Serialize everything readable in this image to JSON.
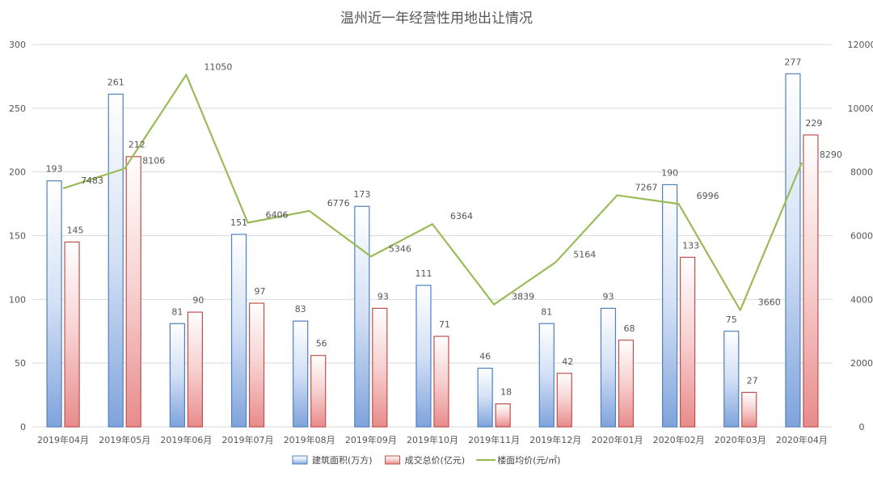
{
  "chart_data": {
    "type": "bar",
    "title": "温州近一年经营性用地出让情况",
    "categories": [
      "2019年04月",
      "2019年05月",
      "2019年06月",
      "2019年07月",
      "2019年08月",
      "2019年09月",
      "2019年10月",
      "2019年11月",
      "2019年12月",
      "2020年01月",
      "2020年02月",
      "2020年03月",
      "2020年04月"
    ],
    "series": [
      {
        "name": "建筑面积(万方)",
        "type": "bar",
        "axis": "left",
        "color": "#4f81bd",
        "values": [
          193,
          261,
          81,
          151,
          83,
          173,
          111,
          46,
          81,
          93,
          190,
          75,
          277
        ]
      },
      {
        "name": "成交总价(亿元)",
        "type": "bar",
        "axis": "left",
        "color": "#c0504d",
        "values": [
          145,
          212,
          90,
          97,
          56,
          93,
          71,
          18,
          42,
          68,
          133,
          27,
          229
        ]
      },
      {
        "name": "楼面均价(元/㎡)",
        "type": "line",
        "axis": "right",
        "color": "#9bbb59",
        "values": [
          7483,
          8106,
          11050,
          6406,
          6776,
          5346,
          6364,
          3839,
          5164,
          7267,
          6996,
          3660,
          8290
        ]
      }
    ],
    "y_left": {
      "min": 0,
      "max": 300,
      "ticks": [
        0,
        50,
        100,
        150,
        200,
        250,
        300
      ]
    },
    "y_right": {
      "min": 0,
      "max": 12000,
      "ticks": [
        0,
        2000,
        4000,
        6000,
        8000,
        10000,
        12000
      ]
    },
    "grid": true,
    "legend_position": "bottom"
  }
}
